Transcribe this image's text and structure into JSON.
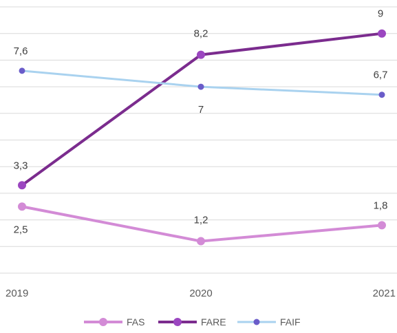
{
  "chart_data": {
    "type": "line",
    "categories": [
      "2019",
      "2020",
      "2021"
    ],
    "series": [
      {
        "name": "FAS",
        "values": [
          2.5,
          1.2,
          1.8
        ],
        "labels": [
          "2,5",
          "1,2",
          "1,8"
        ],
        "color": "#d38bd6",
        "marker": "#d38bd6"
      },
      {
        "name": "FARE",
        "values": [
          3.3,
          8.2,
          9.0
        ],
        "labels": [
          "3,3",
          "8,2",
          "9"
        ],
        "color": "#7b2c8e",
        "marker": "#9b46c0"
      },
      {
        "name": "FAIF",
        "values": [
          7.6,
          7.0,
          6.7
        ],
        "labels": [
          "7,6",
          "7",
          "6,7"
        ],
        "color": "#a9d2ef",
        "marker": "#6a5cc9"
      }
    ],
    "ylim": [
      0,
      10
    ],
    "grid": true,
    "legend": "bottom"
  }
}
